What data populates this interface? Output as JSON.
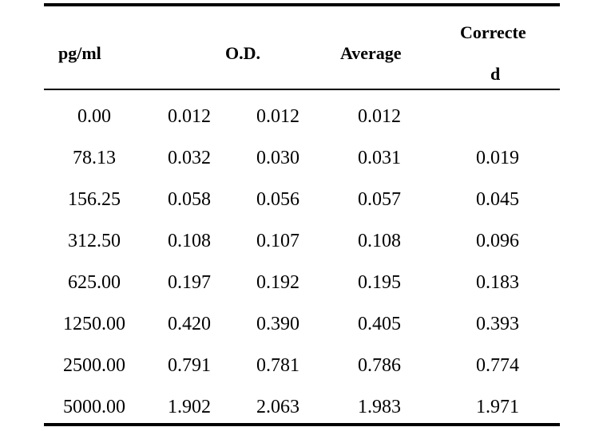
{
  "table": {
    "headers": {
      "concentration": "pg/ml",
      "od": "O.D.",
      "average": "Average",
      "corrected_line1": "Correcte",
      "corrected_line2": "d"
    },
    "rows": [
      {
        "conc": "0.00",
        "od1": "0.012",
        "od2": "0.012",
        "avg": "0.012",
        "corr": ""
      },
      {
        "conc": "78.13",
        "od1": "0.032",
        "od2": "0.030",
        "avg": "0.031",
        "corr": "0.019"
      },
      {
        "conc": "156.25",
        "od1": "0.058",
        "od2": "0.056",
        "avg": "0.057",
        "corr": "0.045"
      },
      {
        "conc": "312.50",
        "od1": "0.108",
        "od2": "0.107",
        "avg": "0.108",
        "corr": "0.096"
      },
      {
        "conc": "625.00",
        "od1": "0.197",
        "od2": "0.192",
        "avg": "0.195",
        "corr": "0.183"
      },
      {
        "conc": "1250.00",
        "od1": "0.420",
        "od2": "0.390",
        "avg": "0.405",
        "corr": "0.393"
      },
      {
        "conc": "2500.00",
        "od1": "0.791",
        "od2": "0.781",
        "avg": "0.786",
        "corr": "0.774"
      },
      {
        "conc": "5000.00",
        "od1": "1.902",
        "od2": "2.063",
        "avg": "1.983",
        "corr": "1.971"
      }
    ]
  }
}
